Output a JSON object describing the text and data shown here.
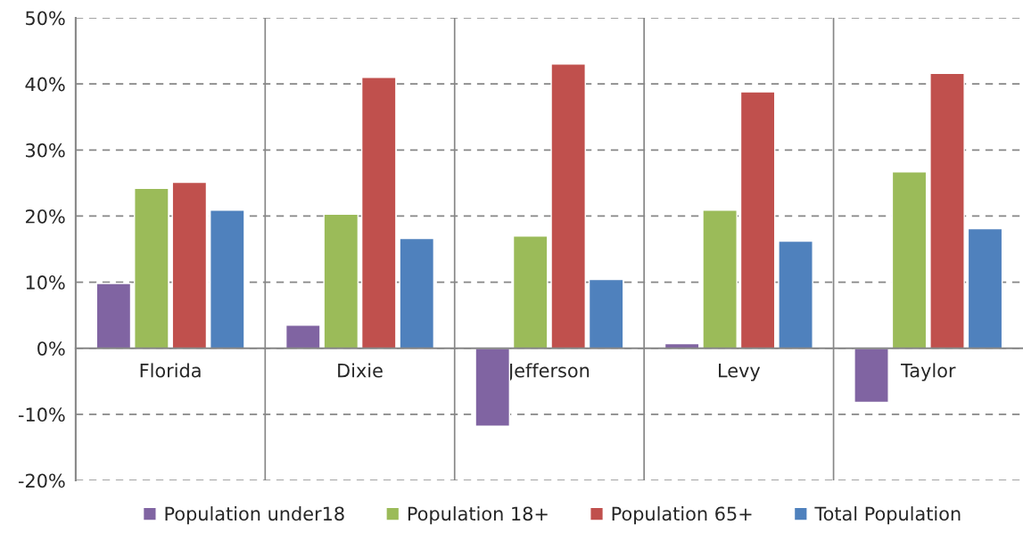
{
  "chart_data": {
    "type": "bar",
    "categories": [
      "Florida",
      "Dixie",
      "Jefferson",
      "Levy",
      "Taylor"
    ],
    "series": [
      {
        "name": "Population under18",
        "color": "#8064a2",
        "values": [
          9.8,
          3.5,
          -11.8,
          0.7,
          -8.2
        ]
      },
      {
        "name": "Population 18+",
        "color": "#9bbb59",
        "values": [
          24.2,
          20.3,
          17.0,
          20.9,
          26.7
        ]
      },
      {
        "name": "Population 65+",
        "color": "#c0504d",
        "values": [
          25.1,
          41.0,
          43.0,
          38.8,
          41.6
        ]
      },
      {
        "name": "Total Population",
        "color": "#4f81bd",
        "values": [
          20.9,
          16.6,
          10.4,
          16.2,
          18.1
        ]
      }
    ],
    "ylim": [
      -20,
      50
    ],
    "yticks": [
      {
        "value": -20,
        "label": "-20%"
      },
      {
        "value": -10,
        "label": "-10%"
      },
      {
        "value": 0,
        "label": "0%"
      },
      {
        "value": 10,
        "label": "10%"
      },
      {
        "value": 20,
        "label": "20%"
      },
      {
        "value": 30,
        "label": "30%"
      },
      {
        "value": 40,
        "label": "40%"
      },
      {
        "value": 50,
        "label": "50%"
      }
    ],
    "grid": true,
    "legend": "bottom"
  }
}
